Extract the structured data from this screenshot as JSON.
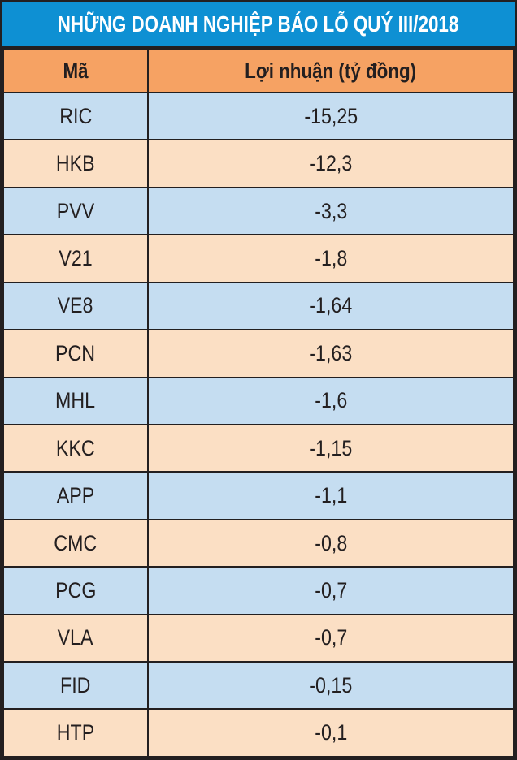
{
  "title": "NHỮNG DOANH NGHIỆP BÁO LỖ QUÝ III/2018",
  "table": {
    "columns": [
      {
        "label": "Mã"
      },
      {
        "label": "Lợi nhuận (tỷ đồng)"
      }
    ],
    "rows": [
      {
        "code": "RIC",
        "value": "-15,25"
      },
      {
        "code": "HKB",
        "value": "-12,3"
      },
      {
        "code": "PVV",
        "value": "-3,3"
      },
      {
        "code": "V21",
        "value": "-1,8"
      },
      {
        "code": "VE8",
        "value": "-1,64"
      },
      {
        "code": "PCN",
        "value": "-1,63"
      },
      {
        "code": "MHL",
        "value": "-1,6"
      },
      {
        "code": "KKC",
        "value": "-1,15"
      },
      {
        "code": "APP",
        "value": "-1,1"
      },
      {
        "code": "CMC",
        "value": "-0,8"
      },
      {
        "code": "PCG",
        "value": "-0,7"
      },
      {
        "code": "VLA",
        "value": "-0,7"
      },
      {
        "code": "FID",
        "value": "-0,15"
      },
      {
        "code": "HTP",
        "value": "-0,1"
      }
    ]
  },
  "colors": {
    "title_bg": "#0e90d3",
    "title_text": "#ffffff",
    "header_bg": "#f6a263",
    "row_blue": "#c5ddf1",
    "row_peach": "#fbdfc4",
    "border": "#231f20",
    "cell_text": "#231f20"
  },
  "chart_data": {
    "type": "table",
    "title": "NHỮNG DOANH NGHIỆP BÁO LỖ QUÝ III/2018",
    "columns": [
      "Mã",
      "Lợi nhuận (tỷ đồng)"
    ],
    "unit": "tỷ đồng",
    "rows": [
      [
        "RIC",
        -15.25
      ],
      [
        "HKB",
        -12.3
      ],
      [
        "PVV",
        -3.3
      ],
      [
        "V21",
        -1.8
      ],
      [
        "VE8",
        -1.64
      ],
      [
        "PCN",
        -1.63
      ],
      [
        "MHL",
        -1.6
      ],
      [
        "KKC",
        -1.15
      ],
      [
        "APP",
        -1.1
      ],
      [
        "CMC",
        -0.8
      ],
      [
        "PCG",
        -0.7
      ],
      [
        "VLA",
        -0.7
      ],
      [
        "FID",
        -0.15
      ],
      [
        "HTP",
        -0.1
      ]
    ]
  }
}
